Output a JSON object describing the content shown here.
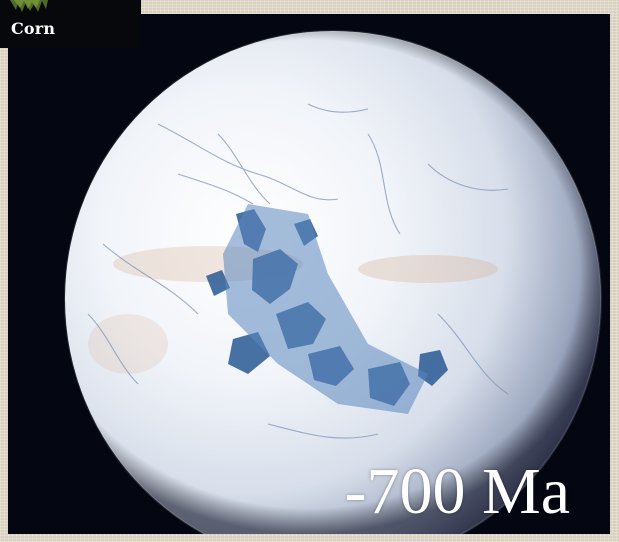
{
  "corner_label": "Corn",
  "era_label": "-700 Ma",
  "colors": {
    "space": "#040712",
    "ice": "#eef2f8",
    "ocean_fracture": "#2a5a94",
    "label_bg": "#06080c"
  },
  "icons": {
    "corner_plant": "foliage-icon"
  }
}
